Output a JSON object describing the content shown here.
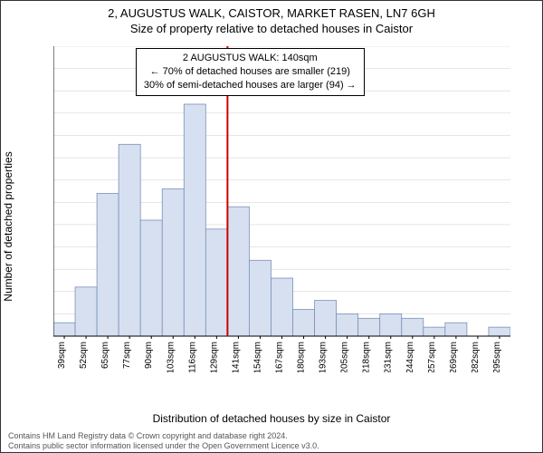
{
  "title_main": "2, AUGUSTUS WALK, CAISTOR, MARKET RASEN, LN7 6GH",
  "title_sub": "Size of property relative to detached houses in Caistor",
  "xlabel": "Distribution of detached houses by size in Caistor",
  "ylabel": "Number of detached properties",
  "info_box": {
    "line1": "2 AUGUSTUS WALK: 140sqm",
    "line2": "← 70% of detached houses are smaller (219)",
    "line3": "30% of semi-detached houses are larger (94) →"
  },
  "footer": {
    "line1": "Contains HM Land Registry data © Crown copyright and database right 2024.",
    "line2": "Contains public sector information licensed under the Open Government Licence v3.0."
  },
  "chart": {
    "type": "histogram",
    "x_categories": [
      "39sqm",
      "52sqm",
      "65sqm",
      "77sqm",
      "90sqm",
      "103sqm",
      "116sqm",
      "129sqm",
      "141sqm",
      "154sqm",
      "167sqm",
      "180sqm",
      "193sqm",
      "205sqm",
      "218sqm",
      "231sqm",
      "244sqm",
      "257sqm",
      "269sqm",
      "282sqm",
      "295sqm"
    ],
    "values": [
      3,
      11,
      32,
      43,
      26,
      33,
      52,
      24,
      29,
      17,
      13,
      6,
      8,
      5,
      4,
      5,
      4,
      2,
      3,
      0,
      2
    ],
    "bar_fill": "#d6e0f0",
    "bar_stroke": "#7a90b8",
    "marker_line_x_index": 8,
    "marker_line_color": "#cc0000",
    "ylim": [
      0,
      65
    ],
    "ytick_step": 5,
    "grid_color": "#cccccc",
    "background_color": "#ffffff",
    "axis_color": "#000000",
    "tick_fontsize": 10,
    "label_fontsize": 12
  }
}
